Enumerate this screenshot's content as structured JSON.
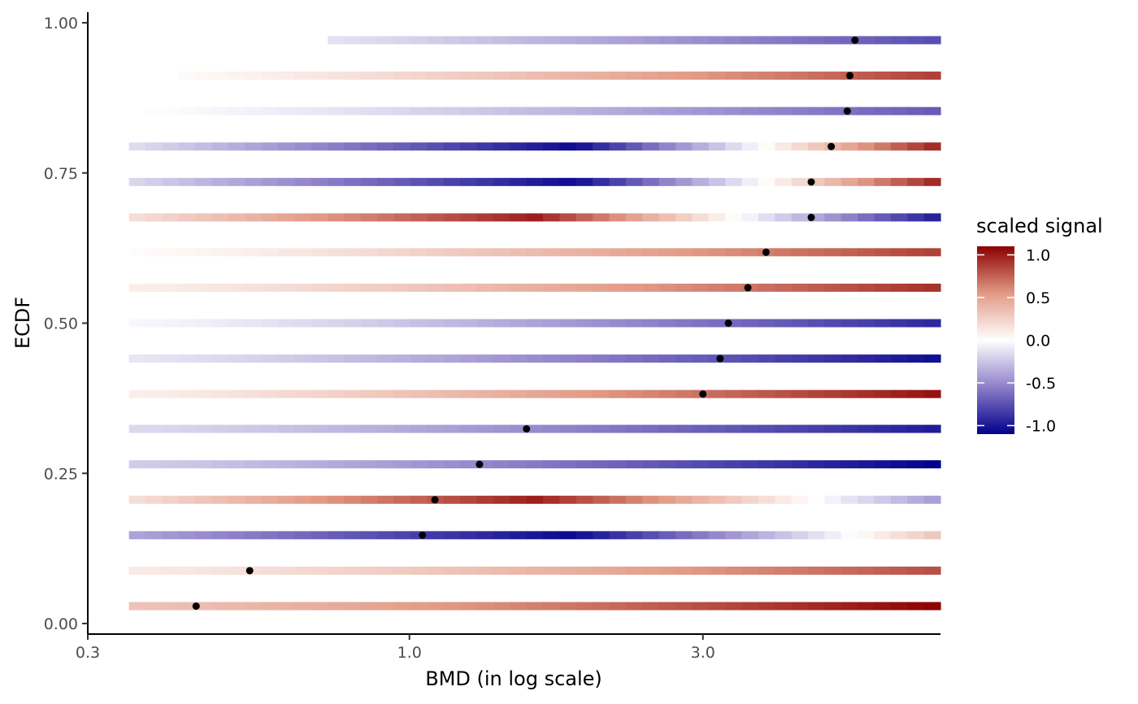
{
  "chart_data": {
    "type": "heatmap",
    "xlabel": "BMD (in log scale)",
    "ylabel": "ECDF",
    "x_scale": "log10",
    "xlim": [
      0.3,
      7.3
    ],
    "x_ticks": [
      0.3,
      1.0,
      3.0
    ],
    "x_tick_labels": [
      "0.3",
      "1.0",
      "3.0"
    ],
    "ylim": [
      0.0,
      1.0
    ],
    "y_ticks": [
      0.0,
      0.25,
      0.5,
      0.75,
      1.0
    ],
    "y_tick_labels": [
      "0.00",
      "0.25",
      "0.50",
      "0.75",
      "1.00"
    ],
    "grid": false,
    "legend": {
      "title": "scaled signal",
      "placement": "right",
      "labels": [
        "1.0",
        "0.5",
        "0.0",
        "-0.5",
        "-1.0"
      ],
      "values": [
        1.0,
        0.5,
        0.0,
        -0.5,
        -1.0
      ],
      "colors": {
        "low": "#00008B",
        "mid": "#FFFFFF",
        "high": "#8B0000"
      },
      "limits": [
        -1.1,
        1.1
      ]
    },
    "dot_color": "#000000",
    "bmd_points": [
      {
        "ecdf": 0.029,
        "bmd": 0.45
      },
      {
        "ecdf": 0.088,
        "bmd": 0.55
      },
      {
        "ecdf": 0.147,
        "bmd": 1.05
      },
      {
        "ecdf": 0.206,
        "bmd": 1.1
      },
      {
        "ecdf": 0.265,
        "bmd": 1.3
      },
      {
        "ecdf": 0.324,
        "bmd": 1.55
      },
      {
        "ecdf": 0.382,
        "bmd": 3.0
      },
      {
        "ecdf": 0.441,
        "bmd": 3.2
      },
      {
        "ecdf": 0.5,
        "bmd": 3.3
      },
      {
        "ecdf": 0.559,
        "bmd": 3.55
      },
      {
        "ecdf": 0.618,
        "bmd": 3.8
      },
      {
        "ecdf": 0.676,
        "bmd": 4.5
      },
      {
        "ecdf": 0.735,
        "bmd": 4.5
      },
      {
        "ecdf": 0.794,
        "bmd": 4.85
      },
      {
        "ecdf": 0.853,
        "bmd": 5.15
      },
      {
        "ecdf": 0.912,
        "bmd": 5.2
      },
      {
        "ecdf": 0.971,
        "bmd": 5.3
      }
    ],
    "tile_x_range": [
      0.35,
      7.3
    ],
    "tiles_per_row": 49,
    "profiles": [
      {
        "ecdf": 0.029,
        "signal_start": 0.3,
        "signal_end": 1.0
      },
      {
        "ecdf": 0.088,
        "signal_start": 0.1,
        "signal_end": 0.75
      },
      {
        "ecdf": 0.147,
        "signal_start": -0.35,
        "signal_end": 0.3,
        "curve": "valley"
      },
      {
        "ecdf": 0.206,
        "signal_start": 0.15,
        "signal_end": -0.4,
        "curve": "hill"
      },
      {
        "ecdf": 0.265,
        "signal_start": -0.2,
        "signal_end": -1.0
      },
      {
        "ecdf": 0.324,
        "signal_start": -0.15,
        "signal_end": -0.9
      },
      {
        "ecdf": 0.382,
        "signal_start": 0.08,
        "signal_end": 0.95
      },
      {
        "ecdf": 0.441,
        "signal_start": -0.1,
        "signal_end": -0.95
      },
      {
        "ecdf": 0.5,
        "signal_start": -0.03,
        "signal_end": -0.85
      },
      {
        "ecdf": 0.559,
        "signal_start": 0.08,
        "signal_end": 0.85
      },
      {
        "ecdf": 0.618,
        "signal_start": 0.02,
        "signal_end": 0.8
      },
      {
        "ecdf": 0.676,
        "signal_start": 0.15,
        "signal_end": -0.9,
        "curve": "hill"
      },
      {
        "ecdf": 0.735,
        "signal_start": -0.15,
        "signal_end": 0.9,
        "curve": "valley"
      },
      {
        "ecdf": 0.794,
        "signal_start": -0.12,
        "signal_end": 0.9,
        "curve": "valley"
      },
      {
        "ecdf": 0.853,
        "signal_start": 0.0,
        "signal_end": -0.65,
        "tile_x_start": 0.35
      },
      {
        "ecdf": 0.912,
        "signal_start": 0.0,
        "signal_end": 0.8,
        "tile_x_start": 0.42
      },
      {
        "ecdf": 0.971,
        "signal_start": 0.0,
        "signal_end": -0.7,
        "tile_x_start": 0.7
      }
    ]
  }
}
